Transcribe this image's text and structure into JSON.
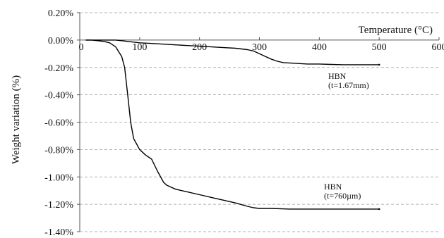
{
  "chart_data": {
    "type": "line",
    "xlabel": "Temperature (°C)",
    "ylabel": "Weight variation (%)",
    "xlim": [
      0,
      600
    ],
    "ylim": [
      -1.4,
      0.2
    ],
    "x_ticks": [
      "0",
      "100",
      "200",
      "300",
      "400",
      "500",
      "600"
    ],
    "y_ticks": [
      "0.20%",
      "0.00%",
      "-0.20%",
      "-0.40%",
      "-0.60%",
      "-0.80%",
      "-1.00%",
      "-1.20%",
      "-1.40%"
    ],
    "grid": "horizontal dashed",
    "colors": {
      "line": "#000000",
      "grid": "#999999",
      "axis": "#555555"
    },
    "series": [
      {
        "annotation": [
          "HBN",
          "(t=1.67mm)"
        ],
        "x": [
          10,
          20,
          30,
          40,
          50,
          60,
          70,
          80,
          90,
          100,
          120,
          140,
          160,
          180,
          200,
          220,
          240,
          260,
          280,
          290,
          300,
          310,
          320,
          330,
          340,
          360,
          380,
          400,
          420,
          440,
          460,
          480,
          500
        ],
        "y": [
          0.0,
          0.0,
          0.0,
          0.0,
          0.0,
          0.0,
          -0.005,
          -0.01,
          -0.015,
          -0.02,
          -0.025,
          -0.03,
          -0.035,
          -0.04,
          -0.045,
          -0.05,
          -0.055,
          -0.06,
          -0.07,
          -0.08,
          -0.1,
          -0.12,
          -0.14,
          -0.155,
          -0.165,
          -0.17,
          -0.175,
          -0.175,
          -0.178,
          -0.18,
          -0.18,
          -0.18,
          -0.18
        ]
      },
      {
        "annotation": [
          "HBN",
          "(t=760µm)"
        ],
        "x": [
          10,
          20,
          30,
          40,
          50,
          60,
          70,
          75,
          80,
          85,
          90,
          95,
          100,
          105,
          110,
          120,
          130,
          140,
          145,
          150,
          160,
          180,
          200,
          220,
          240,
          260,
          280,
          290,
          300,
          320,
          350,
          400,
          450,
          500
        ],
        "y": [
          0.0,
          0.0,
          -0.005,
          -0.01,
          -0.02,
          -0.05,
          -0.12,
          -0.2,
          -0.4,
          -0.6,
          -0.72,
          -0.76,
          -0.8,
          -0.82,
          -0.84,
          -0.87,
          -0.96,
          -1.04,
          -1.06,
          -1.07,
          -1.09,
          -1.11,
          -1.13,
          -1.15,
          -1.17,
          -1.19,
          -1.215,
          -1.225,
          -1.23,
          -1.23,
          -1.235,
          -1.235,
          -1.235,
          -1.235
        ]
      }
    ]
  }
}
